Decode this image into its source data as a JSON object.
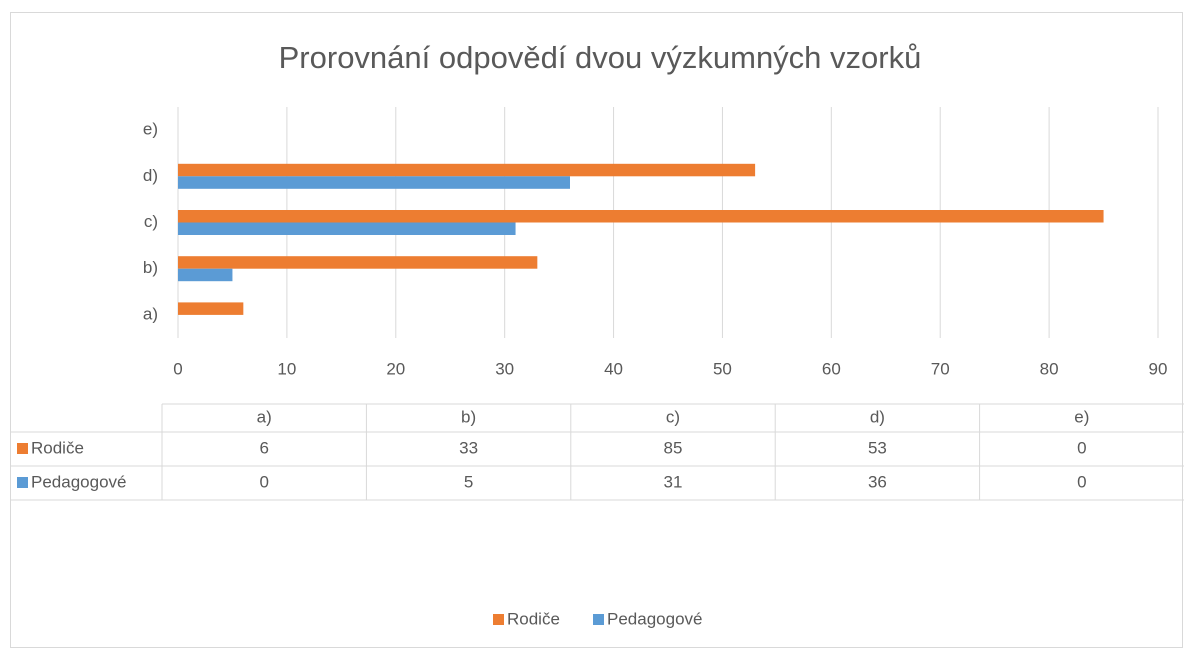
{
  "chart_data": {
    "type": "barh",
    "title": "Prorovnání odpovědí dvou výzkumných vzorků",
    "categories": [
      "a)",
      "b)",
      "c)",
      "d)",
      "e)"
    ],
    "series": [
      {
        "name": "Rodiče",
        "color": "#ed7d31",
        "values": [
          6,
          33,
          85,
          53,
          0
        ]
      },
      {
        "name": "Pedagogové",
        "color": "#5b9bd5",
        "values": [
          0,
          5,
          31,
          36,
          0
        ]
      }
    ],
    "xlim": [
      0,
      90
    ],
    "xticks": [
      0,
      10,
      20,
      30,
      40,
      50,
      60,
      70,
      80,
      90
    ],
    "grid": true,
    "legend": "bottom",
    "data_table": true
  }
}
